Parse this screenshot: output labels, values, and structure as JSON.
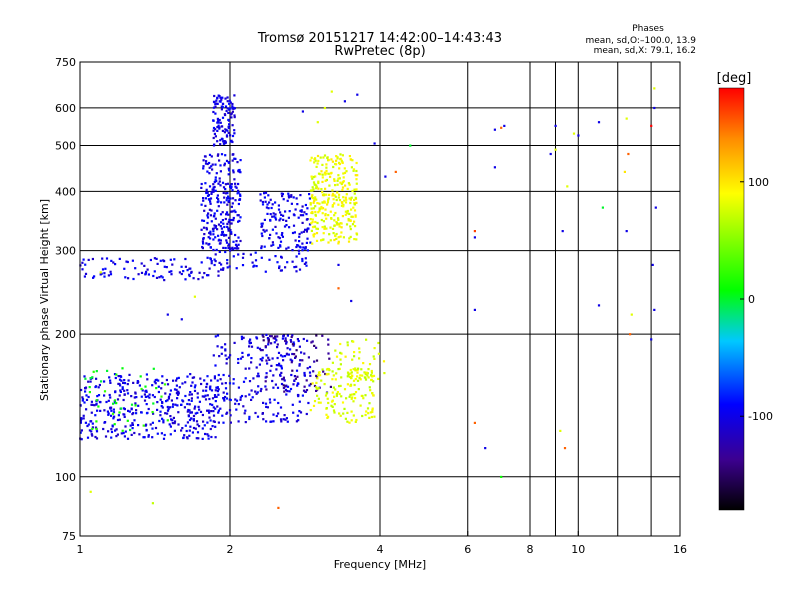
{
  "chart_data": {
    "type": "scatter",
    "title": "Tromsø 20151217 14:42:00–14:43:43",
    "subtitle": "RwPretec (8p)",
    "xlabel": "Frequency [MHz]",
    "ylabel": "Stationary phase Virtual Height [km]",
    "x_scale": "log",
    "y_scale": "log",
    "xlim": [
      1,
      16
    ],
    "ylim": [
      75,
      750
    ],
    "xticks": [
      1,
      2,
      4,
      6,
      8,
      10,
      16
    ],
    "xtick_labels": [
      "1",
      "2",
      "4",
      "6",
      "8",
      "10",
      "16"
    ],
    "extra_xgrid": [
      9,
      12,
      14
    ],
    "yticks": [
      75,
      100,
      200,
      300,
      400,
      500,
      600,
      750
    ],
    "ytick_labels": [
      "75",
      "100",
      "200",
      "300",
      "400",
      "500",
      "600",
      "750"
    ],
    "grid": true,
    "phase_stats": {
      "header": "Phases",
      "line_o": "mean, sd,O:–100.0, 13.9",
      "line_x": "mean, sd,X:  79.1, 16.2"
    },
    "colorbar": {
      "label": "[deg]",
      "min": -180,
      "max": 180,
      "ticks": [
        100,
        0,
        -100
      ],
      "tick_labels": [
        "100",
        "0",
        "-100"
      ]
    },
    "point_clusters": [
      {
        "x": [
          1.0,
          1.9
        ],
        "y": [
          120,
          165
        ],
        "phase": -100,
        "count": 420
      },
      {
        "x": [
          1.0,
          1.5
        ],
        "y": [
          125,
          170
        ],
        "phase": 10,
        "count": 40
      },
      {
        "x": [
          1.85,
          2.9
        ],
        "y": [
          130,
          200
        ],
        "phase": -100,
        "count": 260
      },
      {
        "x": [
          2.3,
          3.2
        ],
        "y": [
          150,
          200
        ],
        "phase": -135,
        "count": 70
      },
      {
        "x": [
          2.9,
          3.9
        ],
        "y": [
          130,
          170
        ],
        "phase": 80,
        "count": 150
      },
      {
        "x": [
          3.2,
          4.1
        ],
        "y": [
          160,
          195
        ],
        "phase": 80,
        "count": 45
      },
      {
        "x": [
          1.0,
          1.9
        ],
        "y": [
          260,
          290
        ],
        "phase": -100,
        "count": 90
      },
      {
        "x": [
          1.8,
          2.9
        ],
        "y": [
          270,
          300
        ],
        "phase": -100,
        "count": 60
      },
      {
        "x": [
          1.75,
          2.1
        ],
        "y": [
          300,
          480
        ],
        "phase": -100,
        "count": 260
      },
      {
        "x": [
          1.85,
          2.05
        ],
        "y": [
          500,
          640
        ],
        "phase": -100,
        "count": 110
      },
      {
        "x": [
          2.3,
          2.9
        ],
        "y": [
          300,
          400
        ],
        "phase": -100,
        "count": 140
      },
      {
        "x": [
          2.9,
          3.6
        ],
        "y": [
          310,
          480
        ],
        "phase": 85,
        "count": 300
      }
    ],
    "sparse_points": [
      {
        "x": 1.4,
        "y": 88,
        "phase": 70
      },
      {
        "x": 2.5,
        "y": 86,
        "phase": 150
      },
      {
        "x": 1.05,
        "y": 93,
        "phase": 80
      },
      {
        "x": 6.2,
        "y": 320,
        "phase": -100
      },
      {
        "x": 6.2,
        "y": 330,
        "phase": 160
      },
      {
        "x": 6.2,
        "y": 225,
        "phase": -100
      },
      {
        "x": 6.2,
        "y": 130,
        "phase": 150
      },
      {
        "x": 6.5,
        "y": 115,
        "phase": -100
      },
      {
        "x": 7.0,
        "y": 100,
        "phase": 10
      },
      {
        "x": 6.8,
        "y": 540,
        "phase": -100
      },
      {
        "x": 7.0,
        "y": 545,
        "phase": 150
      },
      {
        "x": 7.1,
        "y": 550,
        "phase": -100
      },
      {
        "x": 6.8,
        "y": 450,
        "phase": -100
      },
      {
        "x": 9.0,
        "y": 550,
        "phase": -100
      },
      {
        "x": 8.8,
        "y": 480,
        "phase": -100
      },
      {
        "x": 9.0,
        "y": 490,
        "phase": 80
      },
      {
        "x": 9.5,
        "y": 410,
        "phase": 80
      },
      {
        "x": 9.3,
        "y": 330,
        "phase": -100
      },
      {
        "x": 9.8,
        "y": 530,
        "phase": 80
      },
      {
        "x": 10.0,
        "y": 525,
        "phase": -100
      },
      {
        "x": 9.2,
        "y": 125,
        "phase": 80
      },
      {
        "x": 9.4,
        "y": 115,
        "phase": 150
      },
      {
        "x": 11.0,
        "y": 560,
        "phase": -100
      },
      {
        "x": 11.0,
        "y": 230,
        "phase": -100
      },
      {
        "x": 11.2,
        "y": 370,
        "phase": 0
      },
      {
        "x": 12.5,
        "y": 570,
        "phase": 80
      },
      {
        "x": 12.6,
        "y": 480,
        "phase": 150
      },
      {
        "x": 12.4,
        "y": 440,
        "phase": 100
      },
      {
        "x": 12.7,
        "y": 200,
        "phase": 150
      },
      {
        "x": 12.5,
        "y": 330,
        "phase": -100
      },
      {
        "x": 12.8,
        "y": 220,
        "phase": 80
      },
      {
        "x": 14.2,
        "y": 660,
        "phase": 80
      },
      {
        "x": 14.0,
        "y": 550,
        "phase": 180
      },
      {
        "x": 14.2,
        "y": 600,
        "phase": -100
      },
      {
        "x": 14.3,
        "y": 370,
        "phase": -100
      },
      {
        "x": 14.1,
        "y": 280,
        "phase": -100
      },
      {
        "x": 14.2,
        "y": 225,
        "phase": -100
      },
      {
        "x": 14.0,
        "y": 195,
        "phase": -100
      },
      {
        "x": 4.1,
        "y": 430,
        "phase": -100
      },
      {
        "x": 4.3,
        "y": 440,
        "phase": 150
      },
      {
        "x": 4.6,
        "y": 500,
        "phase": 0
      },
      {
        "x": 3.9,
        "y": 505,
        "phase": -100
      },
      {
        "x": 3.3,
        "y": 250,
        "phase": 150
      },
      {
        "x": 3.5,
        "y": 235,
        "phase": -100
      },
      {
        "x": 3.3,
        "y": 280,
        "phase": -100
      },
      {
        "x": 3.0,
        "y": 560,
        "phase": 80
      },
      {
        "x": 3.1,
        "y": 600,
        "phase": 80
      },
      {
        "x": 3.4,
        "y": 620,
        "phase": -100
      },
      {
        "x": 3.6,
        "y": 640,
        "phase": -100
      },
      {
        "x": 2.8,
        "y": 590,
        "phase": -100
      },
      {
        "x": 3.2,
        "y": 650,
        "phase": 80
      },
      {
        "x": 1.7,
        "y": 240,
        "phase": 80
      },
      {
        "x": 1.5,
        "y": 220,
        "phase": -100
      },
      {
        "x": 1.6,
        "y": 215,
        "phase": -100
      },
      {
        "x": 1.1,
        "y": 270,
        "phase": 80
      }
    ]
  }
}
